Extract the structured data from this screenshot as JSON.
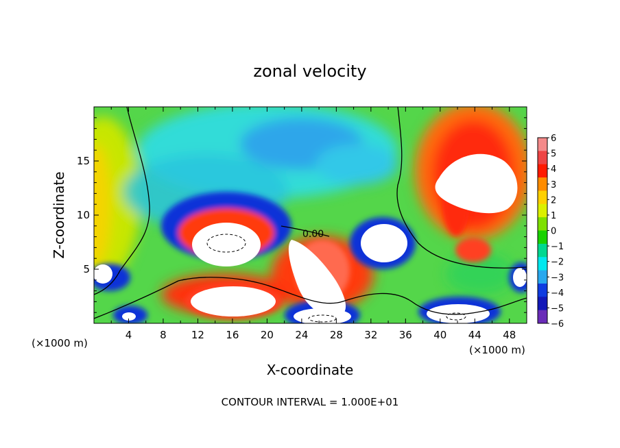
{
  "chart_data": {
    "type": "heatmap",
    "title": "zonal velocity",
    "xlabel": "X-coordinate",
    "ylabel": "Z-coordinate",
    "x_unit": "(×1000 m)",
    "x_unit_right": "(×1000 m)",
    "xlim": [
      0,
      50
    ],
    "ylim": [
      0,
      20
    ],
    "x_ticks": [
      4,
      8,
      12,
      16,
      20,
      24,
      28,
      32,
      36,
      40,
      44,
      48
    ],
    "y_ticks": [
      5,
      10,
      15
    ],
    "contour_label": "0.00",
    "footer": "CONTOUR INTERVAL = 1.000E+01",
    "colorbar": {
      "levels": [
        6,
        5,
        4,
        3,
        2,
        1,
        0,
        -1,
        -2,
        -3,
        -4,
        -5,
        -6
      ],
      "labels": [
        "6",
        "5",
        "4",
        "3",
        "2",
        "1",
        "0",
        "−1",
        "−2",
        "−3",
        "−4",
        "−5",
        "−6"
      ],
      "colors": [
        "#f48a8a",
        "#ee4444",
        "#ff1a00",
        "#ff8c00",
        "#ffd000",
        "#dcf000",
        "#7ee000",
        "#19d200",
        "#00d890",
        "#00e8ee",
        "#29a8ee",
        "#0f3ce0",
        "#1218b8",
        "#6a2cb8"
      ]
    },
    "features": [
      {
        "kind": "max",
        "x": 42,
        "z": 15,
        "value": 6
      },
      {
        "kind": "max",
        "x": 26,
        "z": 4,
        "value": 6
      },
      {
        "kind": "min",
        "x": 17,
        "z": 7,
        "value": -6
      },
      {
        "kind": "min",
        "x": 34,
        "z": 7,
        "value": -6
      },
      {
        "kind": "max",
        "x": 2,
        "z": 8,
        "value": 3
      },
      {
        "kind": "min",
        "x": 22,
        "z": 17,
        "value": -3
      }
    ]
  }
}
